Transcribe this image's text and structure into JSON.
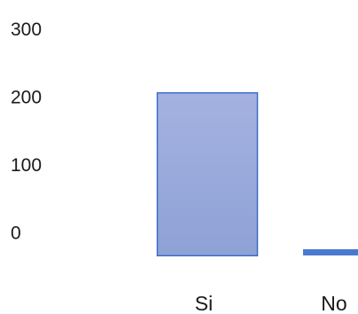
{
  "chart_data": {
    "type": "bar",
    "categories": [
      "Si",
      "No"
    ],
    "values": [
      205,
      10
    ],
    "yticks": [
      0,
      100,
      200,
      300
    ],
    "ylim": [
      -35,
      300
    ],
    "grid": false,
    "legend": "none",
    "colors": {
      "bar_top": "#a4b2e0",
      "bar_bottom": "#8ea1d6",
      "bar_stroke": "#3d6cc6",
      "bar_line": "#4a7ad0",
      "text": "#1a1a1a"
    }
  }
}
